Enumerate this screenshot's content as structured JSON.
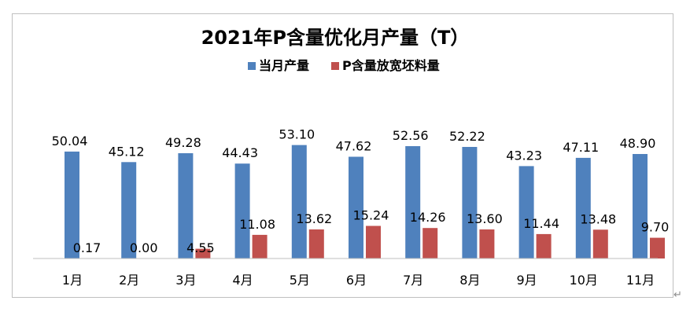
{
  "chart_data": {
    "type": "bar",
    "title": "2021年P含量优化月产量（T）",
    "categories": [
      "1月",
      "2月",
      "3月",
      "4月",
      "5月",
      "6月",
      "7月",
      "8月",
      "9月",
      "10月",
      "11月"
    ],
    "series": [
      {
        "name": "当月产量",
        "color": "#4f81bd",
        "values": [
          50.04,
          45.12,
          49.28,
          44.43,
          53.1,
          47.62,
          52.56,
          52.22,
          43.23,
          47.11,
          48.9
        ],
        "labels": [
          "50.04",
          "45.12",
          "49.28",
          "44.43",
          "53.10",
          "47.62",
          "52.56",
          "52.22",
          "43.23",
          "47.11",
          "48.90"
        ]
      },
      {
        "name": "P含量放宽坯料量",
        "color": "#c0504d",
        "values": [
          0.17,
          0.0,
          4.55,
          11.08,
          13.62,
          15.24,
          14.26,
          13.6,
          11.44,
          13.48,
          9.7
        ],
        "labels": [
          "0.17",
          "0.00",
          "4.55",
          "11.08",
          "13.62",
          "15.24",
          "14.26",
          "13.60",
          "11.44",
          "13.48",
          "9.70"
        ]
      }
    ],
    "ylim": [
      0,
      60
    ],
    "grid": false,
    "legend": "top-center"
  },
  "return_glyph": "↵"
}
